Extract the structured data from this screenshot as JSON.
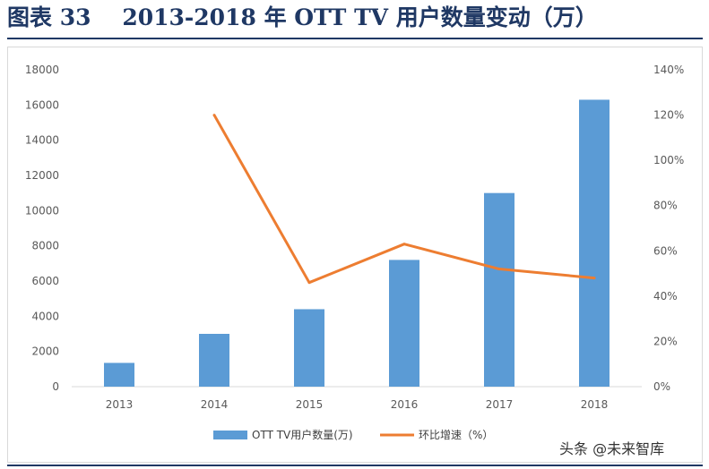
{
  "header": {
    "figure_label": "图表 33",
    "title": "2013-2018 年 OTT TV 用户数量变动（万）"
  },
  "watermark": "头条 @未来智库",
  "chart_data": {
    "type": "bar",
    "categories": [
      "2013",
      "2014",
      "2015",
      "2016",
      "2017",
      "2018"
    ],
    "series": [
      {
        "name": "OTT TV用户数量(万)",
        "type": "bar",
        "axis": "left",
        "color": "#5b9bd5",
        "values": [
          1350,
          3000,
          4400,
          7200,
          11000,
          16300
        ]
      },
      {
        "name": "环比增速（%）",
        "type": "line",
        "axis": "right",
        "color": "#ed7d31",
        "values": [
          null,
          120,
          46,
          63,
          52,
          48
        ]
      }
    ],
    "y_left": {
      "ylim": [
        0,
        18000
      ],
      "ticks": [
        "0",
        "2000",
        "4000",
        "6000",
        "8000",
        "10000",
        "12000",
        "14000",
        "16000",
        "18000"
      ]
    },
    "y_right": {
      "ylim": [
        0,
        140
      ],
      "ticks": [
        "0%",
        "20%",
        "40%",
        "60%",
        "80%",
        "100%",
        "120%",
        "140%"
      ]
    },
    "legend_position": "bottom",
    "grid": false
  }
}
